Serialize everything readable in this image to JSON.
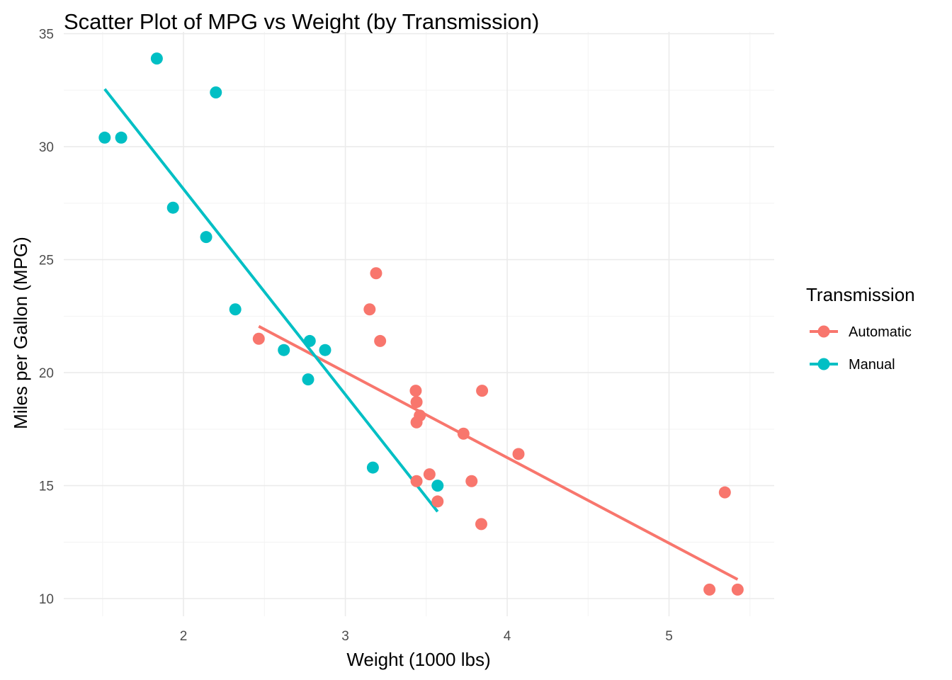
{
  "chart_data": {
    "type": "scatter",
    "title": "Scatter Plot of MPG vs Weight (by Transmission)",
    "xlabel": "Weight (1000 lbs)",
    "ylabel": "Miles per Gallon (MPG)",
    "xlim": [
      1.26,
      5.65
    ],
    "ylim": [
      9.22,
      35.08
    ],
    "x_ticks": [
      2,
      3,
      4,
      5
    ],
    "y_ticks": [
      10,
      15,
      20,
      25,
      30,
      35
    ],
    "grid": true,
    "legend": {
      "title": "Transmission",
      "position": "right"
    },
    "series": [
      {
        "name": "Automatic",
        "color": "#F8766D",
        "points": [
          [
            2.465,
            21.5
          ],
          [
            3.15,
            22.8
          ],
          [
            3.19,
            24.4
          ],
          [
            3.215,
            21.4
          ],
          [
            3.435,
            19.2
          ],
          [
            3.44,
            18.7
          ],
          [
            3.44,
            17.8
          ],
          [
            3.46,
            18.1
          ],
          [
            3.44,
            15.2
          ],
          [
            3.52,
            15.5
          ],
          [
            3.57,
            14.3
          ],
          [
            3.73,
            17.3
          ],
          [
            3.78,
            15.2
          ],
          [
            3.84,
            13.3
          ],
          [
            3.845,
            19.2
          ],
          [
            4.07,
            16.4
          ],
          [
            5.25,
            10.4
          ],
          [
            5.345,
            14.7
          ],
          [
            5.424,
            10.4
          ]
        ],
        "fit": {
          "x": [
            2.465,
            5.424
          ],
          "y": [
            22.05,
            10.85
          ]
        }
      },
      {
        "name": "Manual",
        "color": "#00BFC4",
        "points": [
          [
            1.513,
            30.4
          ],
          [
            1.615,
            30.4
          ],
          [
            1.835,
            33.9
          ],
          [
            1.935,
            27.3
          ],
          [
            2.14,
            26.0
          ],
          [
            2.2,
            32.4
          ],
          [
            2.32,
            22.8
          ],
          [
            2.62,
            21.0
          ],
          [
            2.77,
            19.7
          ],
          [
            2.78,
            21.4
          ],
          [
            2.875,
            21.0
          ],
          [
            3.17,
            15.8
          ],
          [
            3.57,
            15.0
          ]
        ],
        "fit": {
          "x": [
            1.513,
            3.57
          ],
          "y": [
            32.55,
            13.85
          ]
        }
      }
    ]
  }
}
